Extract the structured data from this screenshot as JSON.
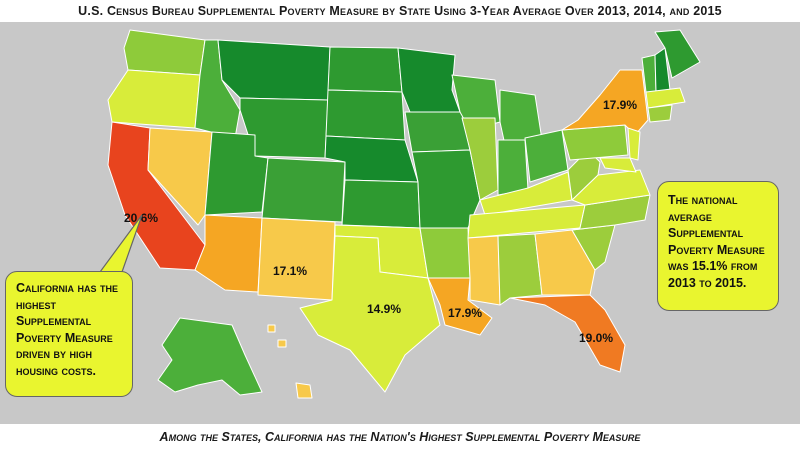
{
  "title": "U.S. Census Bureau Supplemental Poverty Measure by State Using 3-Year Average Over 2013, 2014, and 2015",
  "footer": "Among the States, California has the Nation's Highest Supplemental Poverty Measure",
  "callouts": {
    "california": "California has the highest Supplemental Poverty Measure driven by high housing costs.",
    "national": "The national average Supplemental Poverty Measure was 15.1% from 2013 to 2015."
  },
  "labels": {
    "CA": "20.6%",
    "NY": "17.9%",
    "NM": "17.1%",
    "TX": "14.9%",
    "LA": "17.9%",
    "FL": "19.0%"
  },
  "colors": {
    "background": "#c8c8c8",
    "callout": "#e9f52f",
    "highest": "#e8441e",
    "high": "#f5a623",
    "elevated": "#f7c94a",
    "mid": "#d8ec3a",
    "low_mid": "#9ccd3c",
    "low": "#4caf3a",
    "lowest": "#168a2c"
  }
}
